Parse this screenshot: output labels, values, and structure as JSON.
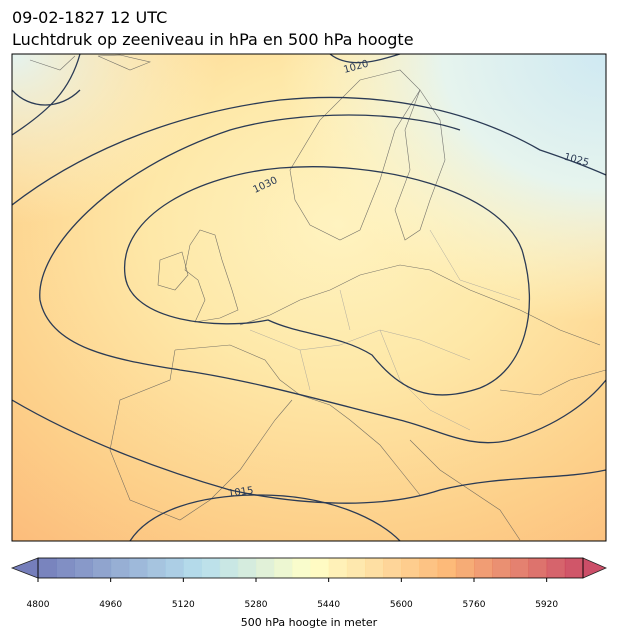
{
  "header": {
    "date": "09-02-1827 12 UTC",
    "title": "Luchtdruk op zeeniveau in hPa en 500 hPa hoogte"
  },
  "map": {
    "isobar_labels": [
      "1020",
      "1025",
      "1030",
      "1015"
    ]
  },
  "colorbar": {
    "label": "500 hPa hoogte in meter",
    "lim": [
      4800,
      6000
    ],
    "step": 40,
    "ticks": [
      4800,
      4960,
      5120,
      5280,
      5440,
      5600,
      5760,
      5920
    ]
  }
}
